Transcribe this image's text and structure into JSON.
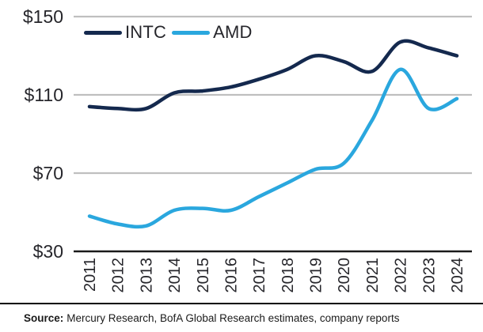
{
  "chart_data": {
    "type": "line",
    "title": "",
    "x": [
      2011,
      2012,
      2013,
      2014,
      2015,
      2016,
      2017,
      2018,
      2019,
      2020,
      2021,
      2022,
      2023,
      2024
    ],
    "series": [
      {
        "name": "INTC",
        "color": "#14294e",
        "values": [
          104,
          103,
          103,
          111,
          112,
          114,
          118,
          123,
          130,
          127,
          122,
          137,
          134,
          130
        ]
      },
      {
        "name": "AMD",
        "color": "#2aa7de",
        "values": [
          48,
          44,
          43,
          51,
          52,
          51,
          58,
          65,
          72,
          75,
          97,
          123,
          103,
          108
        ]
      }
    ],
    "ylim": [
      30,
      150
    ],
    "yticks": [
      {
        "value": 150,
        "label": "$150"
      },
      {
        "value": 110,
        "label": "$110"
      },
      {
        "value": 70,
        "label": "$70"
      },
      {
        "value": 30,
        "label": "$30"
      }
    ],
    "grid": "horizontal-gray-lines",
    "legend_position": "top-inside-left",
    "x_tick_rotation": "vertical"
  },
  "colors": {
    "gridline": "#bfbfbf",
    "axis": "#1a1a1a",
    "tick_text": "#26262b",
    "footer_rule": "#000000"
  },
  "footer": {
    "source_label": "Source:",
    "source_text": "Mercury Research, BofA Global Research estimates, company reports"
  }
}
